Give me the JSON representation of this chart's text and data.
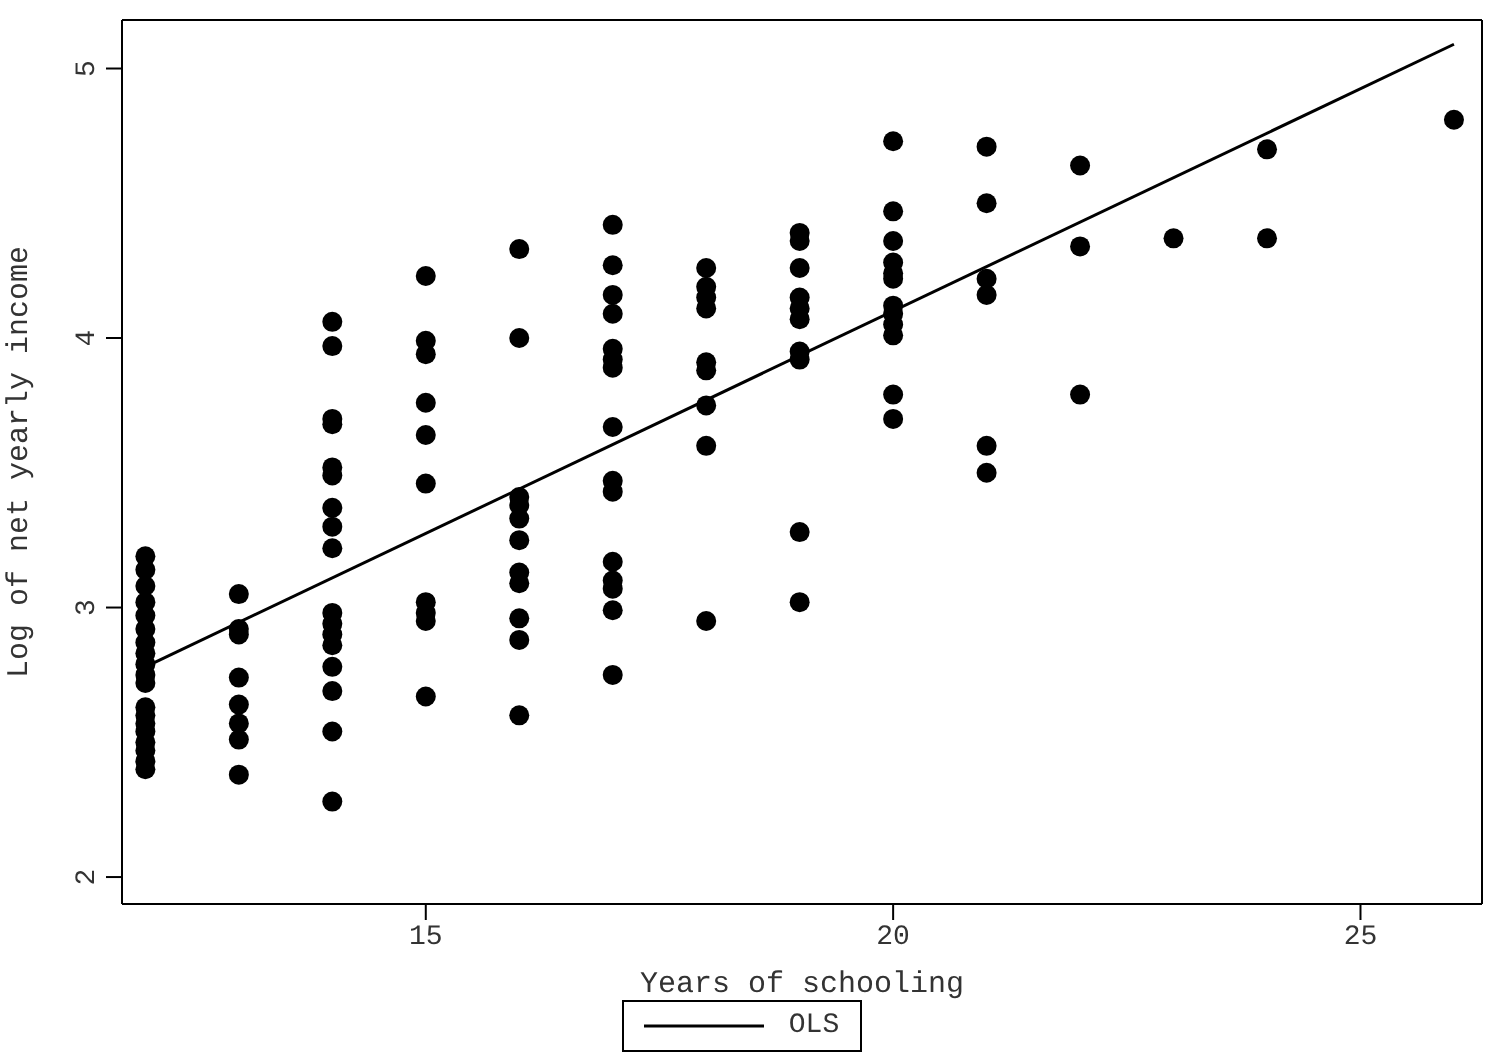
{
  "chart_data": {
    "type": "scatter",
    "xlabel": "Years of schooling",
    "ylabel": "Log of net yearly income",
    "xlim": [
      11.75,
      26.3
    ],
    "ylim": [
      1.9,
      5.18
    ],
    "xticks": [
      15,
      20,
      25
    ],
    "yticks": [
      2,
      3,
      4,
      5
    ],
    "legend": "bottom",
    "marker": "circle",
    "series": [
      {
        "color": "#000000",
        "x": [
          12,
          12,
          12,
          12,
          12,
          12,
          12,
          12,
          12,
          12,
          12,
          12,
          12,
          12,
          12,
          12,
          12,
          12,
          12,
          13,
          13,
          13,
          13,
          13,
          13,
          13,
          13,
          14,
          14,
          14,
          14,
          14,
          14,
          14,
          14,
          14,
          14,
          14,
          14,
          14,
          14,
          14,
          14,
          14,
          15,
          15,
          15,
          15,
          15,
          15,
          15,
          15,
          15,
          15,
          16,
          16,
          16,
          16,
          16,
          16,
          16,
          16,
          16,
          16,
          16,
          17,
          17,
          17,
          17,
          17,
          17,
          17,
          17,
          17,
          17,
          17,
          17,
          17,
          17,
          17,
          18,
          18,
          18,
          18,
          18,
          18,
          18,
          18,
          18,
          19,
          19,
          19,
          19,
          19,
          19,
          19,
          19,
          19,
          19,
          20,
          20,
          20,
          20,
          20,
          20,
          20,
          20,
          20,
          20,
          20,
          20,
          21,
          21,
          21,
          21,
          21,
          21,
          22,
          22,
          22,
          23,
          24,
          24,
          26
        ],
        "values": [
          3.19,
          3.14,
          3.08,
          3.02,
          2.97,
          2.92,
          2.87,
          2.83,
          2.79,
          2.75,
          2.72,
          2.63,
          2.6,
          2.57,
          2.54,
          2.5,
          2.47,
          2.43,
          2.4,
          3.05,
          2.92,
          2.9,
          2.74,
          2.64,
          2.57,
          2.51,
          2.38,
          4.06,
          3.97,
          3.7,
          3.68,
          3.52,
          3.49,
          3.37,
          3.3,
          3.22,
          2.98,
          2.94,
          2.9,
          2.86,
          2.78,
          2.69,
          2.54,
          2.28,
          4.23,
          3.99,
          3.94,
          3.76,
          3.64,
          3.46,
          3.02,
          2.98,
          2.95,
          2.67,
          4.33,
          4.0,
          3.41,
          3.33,
          3.25,
          3.13,
          3.09,
          2.96,
          2.88,
          2.6,
          3.38,
          4.42,
          4.27,
          4.16,
          4.09,
          3.96,
          3.92,
          3.89,
          3.67,
          3.47,
          3.43,
          3.17,
          3.1,
          3.07,
          2.99,
          2.75,
          4.26,
          4.19,
          4.15,
          4.11,
          3.91,
          3.88,
          3.75,
          3.6,
          2.95,
          4.39,
          4.36,
          4.26,
          4.15,
          4.11,
          4.07,
          3.95,
          3.92,
          3.28,
          3.02,
          4.73,
          4.47,
          4.36,
          4.28,
          4.24,
          4.22,
          4.12,
          4.09,
          4.05,
          4.01,
          3.79,
          3.7,
          4.71,
          4.5,
          4.22,
          4.16,
          3.6,
          3.5,
          4.64,
          4.34,
          3.79,
          4.37,
          4.7,
          4.37,
          4.81
        ]
      },
      {
        "type": "line",
        "name": "OLS",
        "color": "#000000",
        "marker": "none",
        "line_style": "solid",
        "x": [
          12,
          26
        ],
        "values": [
          2.78,
          5.09
        ]
      }
    ]
  }
}
